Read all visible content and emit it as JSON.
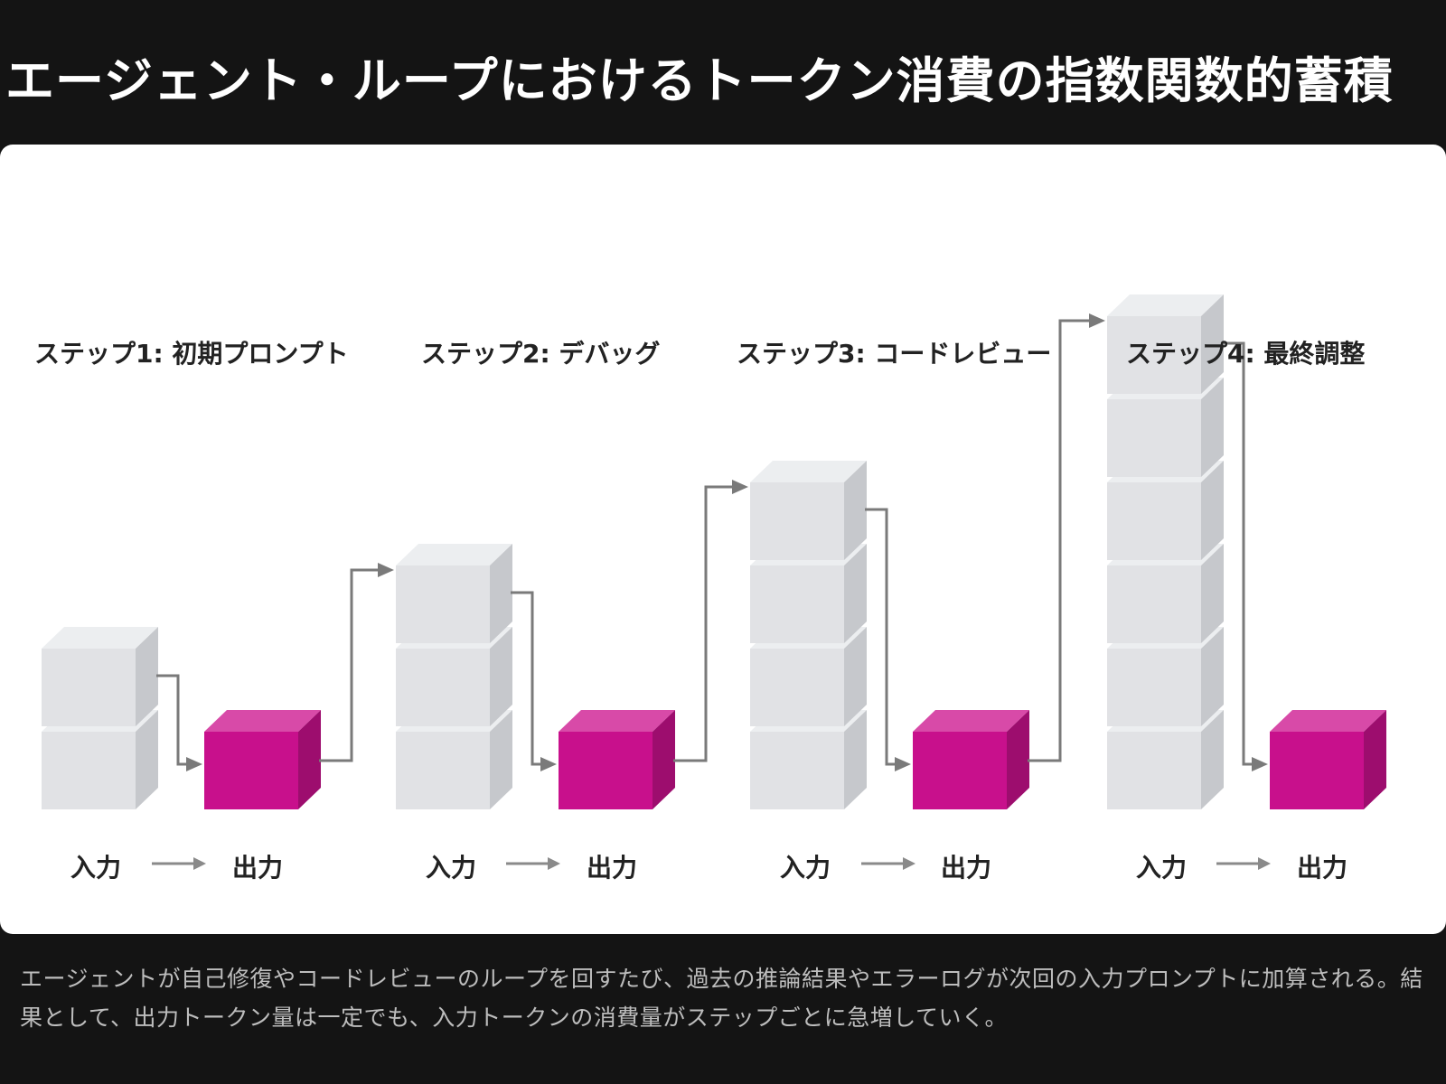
{
  "title": "エージェント・ループにおけるトークン消費の指数関数的蓄積",
  "steps": [
    {
      "label": "ステップ1: 初期プロンプト",
      "input_blocks": 2,
      "output_blocks": 1,
      "input_label": "入力",
      "output_label": "出力"
    },
    {
      "label": "ステップ2: デバッグ",
      "input_blocks": 3,
      "output_blocks": 1,
      "input_label": "入力",
      "output_label": "出力"
    },
    {
      "label": "ステップ3: コードレビュー",
      "input_blocks": 4,
      "output_blocks": 1,
      "input_label": "入力",
      "output_label": "出力"
    },
    {
      "label": "ステップ4: 最終調整",
      "input_blocks": 6,
      "output_blocks": 1,
      "input_label": "入力",
      "output_label": "出力"
    }
  ],
  "caption": "エージェントが自己修復やコードレビューのループを回すたび、過去の推論結果やエラーログが次回の入力プロンプトに加算される。結果として、出力トークン量は一定でも、入力トークンの消費量がステップごとに急増していく。",
  "colors": {
    "background": "#141414",
    "panel": "#ffffff",
    "input_block_front": "#e1e2e5",
    "input_block_top": "#eceef0",
    "input_block_side": "#c6c8cc",
    "output_block_front": "#c8108c",
    "output_block_top": "#d84aa8",
    "output_block_side": "#9d0d6e",
    "arrow": "#7a7a7a"
  },
  "icons": [
    "flow-arrow-icon",
    "right-arrow-icon"
  ]
}
